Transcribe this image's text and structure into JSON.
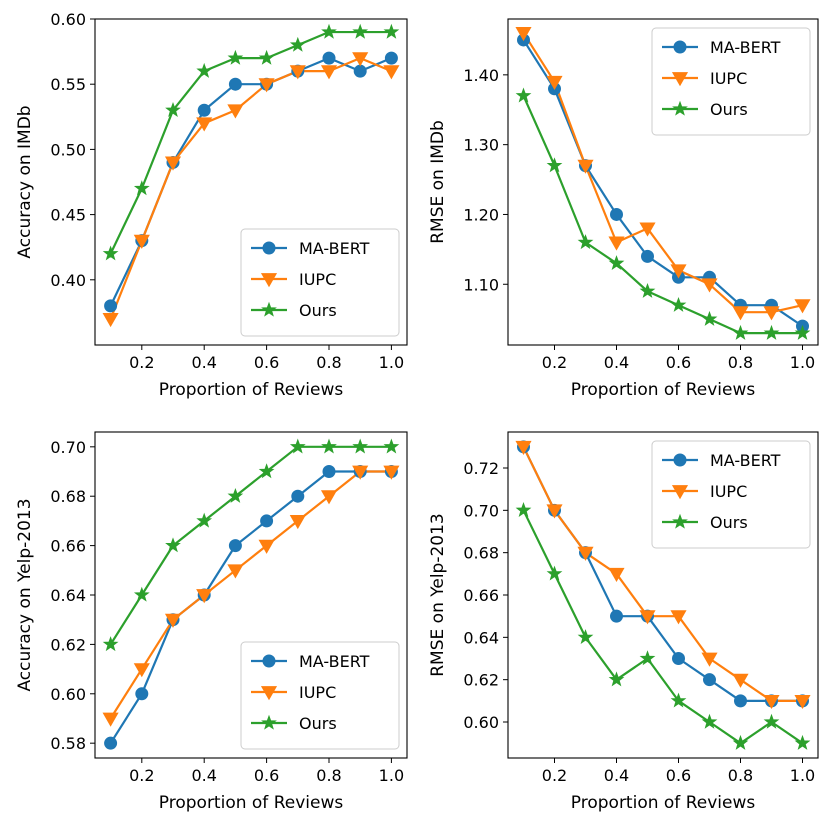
{
  "chart_data": [
    {
      "type": "line",
      "xlabel": "Proportion of Reviews",
      "ylabel": "Accuracy on IMDb",
      "x": [
        0.1,
        0.2,
        0.3,
        0.4,
        0.5,
        0.6,
        0.7,
        0.8,
        0.9,
        1.0
      ],
      "xlim": [
        0.05,
        1.05
      ],
      "ylim": [
        0.35,
        0.6
      ],
      "xticks": [
        0.2,
        0.4,
        0.6,
        0.8,
        1.0
      ],
      "xtick_labels": [
        "0.2",
        "0.4",
        "0.6",
        "0.8",
        "1.0"
      ],
      "yticks": [
        0.4,
        0.45,
        0.5,
        0.55,
        0.6
      ],
      "ytick_labels": [
        "0.40",
        "0.45",
        "0.50",
        "0.55",
        "0.60"
      ],
      "legend_position": "bottom-right",
      "series": [
        {
          "name": "MA-BERT",
          "color": "#1f77b4",
          "marker": "circle",
          "values": [
            0.38,
            0.43,
            0.49,
            0.53,
            0.55,
            0.55,
            0.56,
            0.57,
            0.56,
            0.57
          ]
        },
        {
          "name": "IUPC",
          "color": "#ff7f0e",
          "marker": "triangle-down",
          "values": [
            0.37,
            0.43,
            0.49,
            0.52,
            0.53,
            0.55,
            0.56,
            0.56,
            0.57,
            0.56
          ]
        },
        {
          "name": "Ours",
          "color": "#2ca02c",
          "marker": "star",
          "values": [
            0.42,
            0.47,
            0.53,
            0.56,
            0.57,
            0.57,
            0.58,
            0.59,
            0.59,
            0.59
          ]
        }
      ]
    },
    {
      "type": "line",
      "xlabel": "Proportion of Reviews",
      "ylabel": "RMSE on IMDb",
      "x": [
        0.1,
        0.2,
        0.3,
        0.4,
        0.5,
        0.6,
        0.7,
        0.8,
        0.9,
        1.0
      ],
      "xlim": [
        0.05,
        1.05
      ],
      "ylim": [
        1.013,
        1.48
      ],
      "xticks": [
        0.2,
        0.4,
        0.6,
        0.8,
        1.0
      ],
      "xtick_labels": [
        "0.2",
        "0.4",
        "0.6",
        "0.8",
        "1.0"
      ],
      "yticks": [
        1.1,
        1.2,
        1.3,
        1.4
      ],
      "ytick_labels": [
        "1.10",
        "1.20",
        "1.30",
        "1.40"
      ],
      "legend_position": "top-right",
      "series": [
        {
          "name": "MA-BERT",
          "color": "#1f77b4",
          "marker": "circle",
          "values": [
            1.45,
            1.38,
            1.27,
            1.2,
            1.14,
            1.11,
            1.11,
            1.07,
            1.07,
            1.04
          ]
        },
        {
          "name": "IUPC",
          "color": "#ff7f0e",
          "marker": "triangle-down",
          "values": [
            1.46,
            1.39,
            1.27,
            1.16,
            1.18,
            1.12,
            1.1,
            1.06,
            1.06,
            1.07
          ]
        },
        {
          "name": "Ours",
          "color": "#2ca02c",
          "marker": "star",
          "values": [
            1.37,
            1.27,
            1.16,
            1.13,
            1.09,
            1.07,
            1.05,
            1.03,
            1.03,
            1.03
          ]
        }
      ]
    },
    {
      "type": "line",
      "xlabel": "Proportion of Reviews",
      "ylabel": "Accuracy on Yelp-2013",
      "x": [
        0.1,
        0.2,
        0.3,
        0.4,
        0.5,
        0.6,
        0.7,
        0.8,
        0.9,
        1.0
      ],
      "xlim": [
        0.05,
        1.05
      ],
      "ylim": [
        0.574,
        0.706
      ],
      "xticks": [
        0.2,
        0.4,
        0.6,
        0.8,
        1.0
      ],
      "xtick_labels": [
        "0.2",
        "0.4",
        "0.6",
        "0.8",
        "1.0"
      ],
      "yticks": [
        0.58,
        0.6,
        0.62,
        0.64,
        0.66,
        0.68,
        0.7
      ],
      "ytick_labels": [
        "0.58",
        "0.60",
        "0.62",
        "0.64",
        "0.66",
        "0.68",
        "0.70"
      ],
      "legend_position": "bottom-right",
      "series": [
        {
          "name": "MA-BERT",
          "color": "#1f77b4",
          "marker": "circle",
          "values": [
            0.58,
            0.6,
            0.63,
            0.64,
            0.66,
            0.67,
            0.68,
            0.69,
            0.69,
            0.69
          ]
        },
        {
          "name": "IUPC",
          "color": "#ff7f0e",
          "marker": "triangle-down",
          "values": [
            0.59,
            0.61,
            0.63,
            0.64,
            0.65,
            0.66,
            0.67,
            0.68,
            0.69,
            0.69
          ]
        },
        {
          "name": "Ours",
          "color": "#2ca02c",
          "marker": "star",
          "values": [
            0.62,
            0.64,
            0.66,
            0.67,
            0.68,
            0.69,
            0.7,
            0.7,
            0.7,
            0.7
          ]
        }
      ]
    },
    {
      "type": "line",
      "xlabel": "Proportion of Reviews",
      "ylabel": "RMSE on Yelp-2013",
      "x": [
        0.1,
        0.2,
        0.3,
        0.4,
        0.5,
        0.6,
        0.7,
        0.8,
        0.9,
        1.0
      ],
      "xlim": [
        0.05,
        1.05
      ],
      "ylim": [
        0.583,
        0.737
      ],
      "xticks": [
        0.2,
        0.4,
        0.6,
        0.8,
        1.0
      ],
      "xtick_labels": [
        "0.2",
        "0.4",
        "0.6",
        "0.8",
        "1.0"
      ],
      "yticks": [
        0.6,
        0.62,
        0.64,
        0.66,
        0.68,
        0.7,
        0.72
      ],
      "ytick_labels": [
        "0.60",
        "0.62",
        "0.64",
        "0.66",
        "0.68",
        "0.70",
        "0.72"
      ],
      "legend_position": "top-right",
      "series": [
        {
          "name": "MA-BERT",
          "color": "#1f77b4",
          "marker": "circle",
          "values": [
            0.73,
            0.7,
            0.68,
            0.65,
            0.65,
            0.63,
            0.62,
            0.61,
            0.61,
            0.61
          ]
        },
        {
          "name": "IUPC",
          "color": "#ff7f0e",
          "marker": "triangle-down",
          "values": [
            0.73,
            0.7,
            0.68,
            0.67,
            0.65,
            0.65,
            0.63,
            0.62,
            0.61,
            0.61
          ]
        },
        {
          "name": "Ours",
          "color": "#2ca02c",
          "marker": "star",
          "values": [
            0.7,
            0.67,
            0.64,
            0.62,
            0.63,
            0.61,
            0.6,
            0.59,
            0.6,
            0.59
          ]
        }
      ]
    }
  ]
}
